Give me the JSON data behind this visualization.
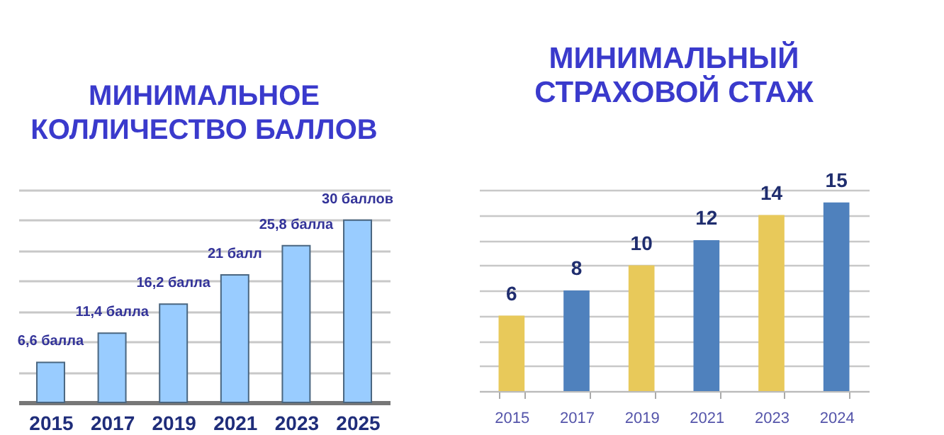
{
  "chart_data": [
    {
      "type": "bar",
      "title": "МИНИМАЛЬНОЕ КОЛЛИЧЕСТВО БАЛЛОВ",
      "categories": [
        "2015",
        "2017",
        "2019",
        "2021",
        "2023",
        "2025"
      ],
      "values": [
        6.6,
        11.4,
        16.2,
        21,
        25.8,
        30
      ],
      "value_labels": [
        "6,6 балла",
        "11,4 балла",
        "16,2 балла",
        "21 балл",
        "25,8 балла",
        "30 баллов"
      ],
      "color": "#99ccff",
      "ylim": [
        0,
        35
      ],
      "yticks": [
        {
          "value": 0,
          "label": null
        },
        {
          "value": 5,
          "label": null
        },
        {
          "value": 10,
          "label": null
        },
        {
          "value": 15,
          "label": null
        },
        {
          "value": 20,
          "label": null
        },
        {
          "value": 25,
          "label": null
        },
        {
          "value": 30,
          "label": null
        },
        {
          "value": 35,
          "label": null
        }
      ],
      "grid": "y",
      "tick_labels": "x"
    },
    {
      "type": "bar",
      "title": "МИНИМАЛЬНЫЙ СТРАХОВОЙ СТАЖ",
      "categories": [
        "2015",
        "2017",
        "2019",
        "2021",
        "2023",
        "2024"
      ],
      "values": [
        6,
        8,
        10,
        12,
        14,
        15
      ],
      "colors": [
        "#e8c95a",
        "#4f81bd",
        "#e8c95a",
        "#4f81bd",
        "#e8c95a",
        "#4f81bd"
      ],
      "data_labels": true,
      "ylim": [
        0,
        16
      ],
      "yticks": [
        {
          "value": 0,
          "label": null
        },
        {
          "value": 2,
          "label": null
        },
        {
          "value": 4,
          "label": null
        },
        {
          "value": 6,
          "label": null
        },
        {
          "value": 8,
          "label": null
        },
        {
          "value": 10,
          "label": null
        },
        {
          "value": 12,
          "label": null
        },
        {
          "value": 14,
          "label": null
        },
        {
          "value": 16,
          "label": null
        }
      ],
      "grid": "y",
      "tick_labels": "x"
    }
  ]
}
